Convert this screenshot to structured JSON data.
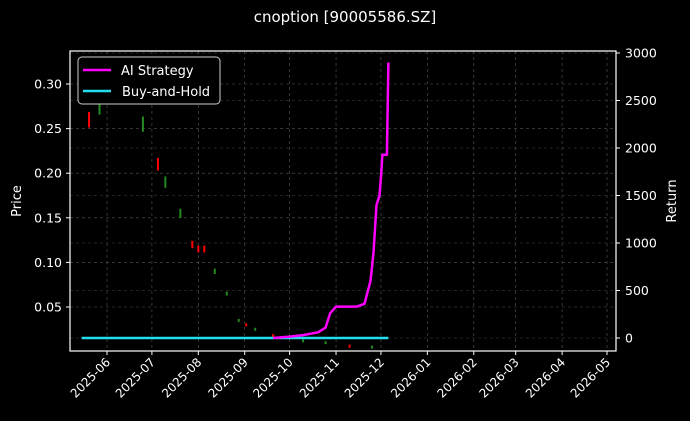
{
  "chart_data": {
    "type": "line",
    "title": "cnoption [90005586.SZ]",
    "xlabel": "",
    "ylabel": "Price",
    "ylabel_right": "Return",
    "ylim": [
      0.0,
      0.335
    ],
    "ylim_right": [
      -120,
      3000
    ],
    "grid": true,
    "legend_position": "upper left",
    "x_ticks": [
      "2025-06",
      "2025-07",
      "2025-08",
      "2025-09",
      "2025-10",
      "2025-11",
      "2025-12",
      "2026-01",
      "2026-02",
      "2026-03",
      "2026-04",
      "2026-05"
    ],
    "y_ticks_left": [
      "0.05",
      "0.10",
      "0.15",
      "0.20",
      "0.25",
      "0.30"
    ],
    "y_ticks_right": [
      "0",
      "500",
      "1000",
      "1500",
      "2000",
      "2500",
      "3000"
    ],
    "series": [
      {
        "name": "AI Strategy",
        "axis": "right",
        "color": "#ff00ff",
        "x": [
          "2025-09-20",
          "2025-10-01",
          "2025-10-10",
          "2025-10-20",
          "2025-10-25",
          "2025-10-28",
          "2025-11-01",
          "2025-11-05",
          "2025-11-08",
          "2025-11-12",
          "2025-11-15",
          "2025-11-20",
          "2025-11-24",
          "2025-11-26",
          "2025-11-28",
          "2025-11-30",
          "2025-12-01",
          "2025-12-02",
          "2025-12-03",
          "2025-12-05",
          "2025-12-06"
        ],
        "values": [
          0,
          15,
          30,
          60,
          110,
          260,
          330,
          330,
          330,
          330,
          330,
          360,
          600,
          900,
          1400,
          1500,
          1700,
          1930,
          1930,
          1930,
          2900
        ]
      },
      {
        "name": "Buy-and-Hold",
        "axis": "right",
        "color": "#22ddee",
        "x": [
          "2025-05-15",
          "2025-12-06"
        ],
        "values": [
          0,
          0
        ]
      }
    ],
    "candlesticks": {
      "axis": "left",
      "up_color": "#228b22",
      "down_color": "#ff0000",
      "approx_prices": [
        {
          "date": "2025-05-20",
          "price": 0.26,
          "color": "red"
        },
        {
          "date": "2025-05-27",
          "price": 0.275,
          "color": "green"
        },
        {
          "date": "2025-06-25",
          "price": 0.255,
          "color": "green"
        },
        {
          "date": "2025-07-05",
          "price": 0.21,
          "color": "red"
        },
        {
          "date": "2025-07-10",
          "price": 0.19,
          "color": "green"
        },
        {
          "date": "2025-07-20",
          "price": 0.155,
          "color": "green"
        },
        {
          "date": "2025-07-28",
          "price": 0.12,
          "color": "red"
        },
        {
          "date": "2025-08-01",
          "price": 0.115,
          "color": "red"
        },
        {
          "date": "2025-08-05",
          "price": 0.115,
          "color": "red"
        },
        {
          "date": "2025-08-12",
          "price": 0.09,
          "color": "green"
        },
        {
          "date": "2025-08-20",
          "price": 0.065,
          "color": "green"
        },
        {
          "date": "2025-08-28",
          "price": 0.035,
          "color": "green"
        },
        {
          "date": "2025-09-02",
          "price": 0.03,
          "color": "red"
        },
        {
          "date": "2025-09-08",
          "price": 0.025,
          "color": "green"
        },
        {
          "date": "2025-09-20",
          "price": 0.018,
          "color": "red"
        },
        {
          "date": "2025-10-10",
          "price": 0.012,
          "color": "green"
        },
        {
          "date": "2025-10-25",
          "price": 0.01,
          "color": "green"
        },
        {
          "date": "2025-11-10",
          "price": 0.006,
          "color": "red"
        },
        {
          "date": "2025-11-25",
          "price": 0.005,
          "color": "green"
        }
      ]
    }
  },
  "legend": {
    "items": [
      {
        "label": "AI Strategy",
        "color": "#ff00ff"
      },
      {
        "label": "Buy-and-Hold",
        "color": "#22ddee"
      }
    ]
  }
}
